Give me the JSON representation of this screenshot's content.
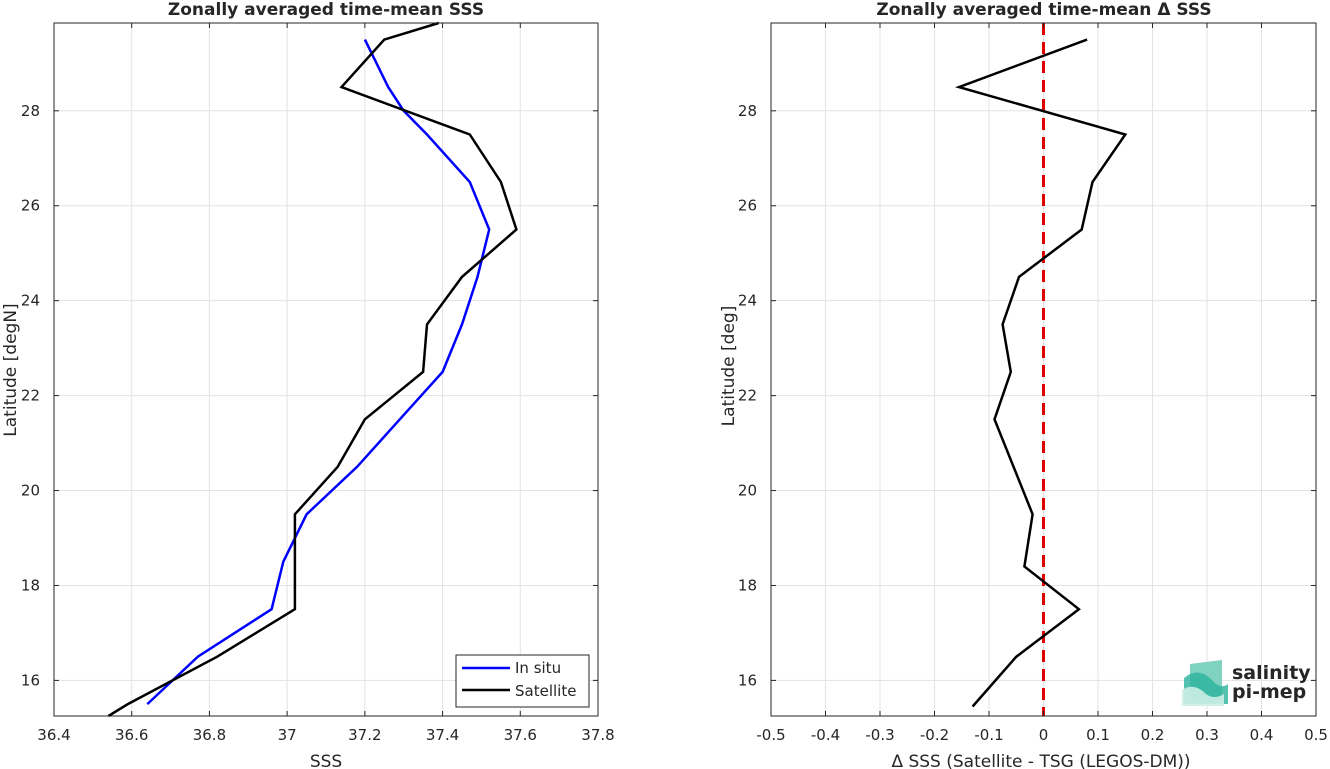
{
  "chart_data": [
    {
      "type": "line",
      "title": "Zonally averaged time-mean SSS",
      "xlabel": "SSS",
      "ylabel": "Latitude [degN]",
      "xlim": [
        36.4,
        37.8
      ],
      "ylim": [
        15.25,
        29.85
      ],
      "xticks": [
        "36.4",
        "36.6",
        "36.8",
        "37",
        "37.2",
        "37.4",
        "37.6",
        "37.8"
      ],
      "yticks": [
        "16",
        "18",
        "20",
        "22",
        "24",
        "26",
        "28"
      ],
      "grid": true,
      "legend": "bottom-right",
      "series": [
        {
          "name": "In situ",
          "color": "#0000ff",
          "x": [
            36.64,
            36.77,
            36.96,
            36.99,
            37.05,
            37.18,
            37.29,
            37.4,
            37.45,
            37.49,
            37.52,
            37.47,
            37.36,
            37.3,
            37.26,
            37.2
          ],
          "y": [
            15.5,
            16.5,
            17.5,
            18.5,
            19.5,
            20.5,
            21.5,
            22.5,
            23.5,
            24.5,
            25.5,
            26.5,
            27.5,
            28.0,
            28.5,
            29.5
          ]
        },
        {
          "name": "Satellite",
          "color": "#000000",
          "x": [
            36.54,
            36.59,
            36.82,
            37.02,
            37.02,
            37.02,
            37.13,
            37.2,
            37.35,
            37.36,
            37.45,
            37.59,
            37.55,
            37.47,
            37.14,
            37.25,
            37.39
          ],
          "y": [
            15.25,
            15.5,
            16.5,
            17.5,
            18.5,
            19.5,
            20.5,
            21.5,
            22.5,
            23.5,
            24.5,
            25.5,
            26.5,
            27.5,
            28.5,
            29.5,
            29.85
          ]
        }
      ]
    },
    {
      "type": "line",
      "title": "Zonally averaged time-mean Δ SSS",
      "xlabel": "Δ SSS (Satellite - TSG (LEGOS-DM))",
      "ylabel": "Latitude [deg]",
      "xlim": [
        -0.5,
        0.5
      ],
      "ylim": [
        15.25,
        29.85
      ],
      "xticks": [
        "-0.5",
        "-0.4",
        "-0.3",
        "-0.2",
        "-0.1",
        "0",
        "0.1",
        "0.2",
        "0.3",
        "0.4",
        "0.5"
      ],
      "yticks": [
        "16",
        "18",
        "20",
        "22",
        "24",
        "26",
        "28"
      ],
      "grid": true,
      "zero_line": {
        "x": 0,
        "color": "#e00000",
        "style": "dashed"
      },
      "series": [
        {
          "color": "#000000",
          "x": [
            -0.13,
            -0.05,
            0.065,
            -0.035,
            -0.02,
            -0.09,
            -0.06,
            -0.075,
            -0.045,
            0.07,
            0.09,
            0.15,
            -0.155,
            0.08
          ],
          "y": [
            15.45,
            16.5,
            17.5,
            18.4,
            19.5,
            21.5,
            22.5,
            23.5,
            24.5,
            25.5,
            26.5,
            27.5,
            28.5,
            29.5
          ]
        }
      ]
    }
  ],
  "logo": {
    "line1": "salinity",
    "line2": "pi-mep",
    "color": "#1aa38f"
  }
}
